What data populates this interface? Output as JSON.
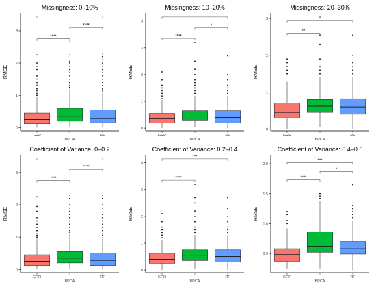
{
  "colors": {
    "GRR": "#F8766D",
    "BPCA": "#00BA38",
    "RF": "#619CFF",
    "axis": "#000000",
    "bracket": "#555555",
    "outlier": "#000000",
    "median": "#222222"
  },
  "chart_data": [
    {
      "type": "boxplot",
      "title": "Missingness: 0–10%",
      "ylabel": "RMSE",
      "xlabel": "",
      "categories": [
        "GRR",
        "BPCA",
        "RF"
      ],
      "yticks": [
        0,
        1,
        2,
        3
      ],
      "ylim": [
        -0.1,
        3.55
      ],
      "boxes": [
        {
          "name": "GRR",
          "whisker_low": 0.0,
          "q1": 0.12,
          "median": 0.25,
          "q3": 0.45,
          "whisker_high": 0.95,
          "outliers": [
            1.0,
            1.05,
            1.1,
            1.15,
            1.2,
            1.3,
            1.35,
            1.4,
            1.5,
            1.6,
            1.8,
            1.9,
            2.0,
            2.25
          ]
        },
        {
          "name": "BPCA",
          "whisker_low": 0.0,
          "q1": 0.2,
          "median": 0.35,
          "q3": 0.6,
          "whisker_high": 1.2,
          "outliers": [
            1.25,
            1.3,
            1.35,
            1.4,
            1.5,
            1.6,
            1.7,
            1.8,
            1.9,
            2.0,
            2.05,
            2.25,
            2.65
          ]
        },
        {
          "name": "RF",
          "whisker_low": 0.0,
          "q1": 0.15,
          "median": 0.28,
          "q3": 0.55,
          "whisker_high": 1.05,
          "outliers": [
            1.1,
            1.15,
            1.2,
            1.3,
            1.4,
            1.5,
            1.6,
            1.7,
            1.8,
            1.9,
            2.0,
            2.1,
            2.2,
            2.3
          ]
        }
      ],
      "comparisons": [
        {
          "from": "GRR",
          "to": "BPCA",
          "y": 2.75,
          "label": "****"
        },
        {
          "from": "BPCA",
          "to": "RF",
          "y": 3.1,
          "label": "****"
        },
        {
          "from": "GRR",
          "to": "RF",
          "y": 3.45,
          "label": ""
        }
      ]
    },
    {
      "type": "boxplot",
      "title": "Missingness: 10–20%",
      "ylabel": "RMSE",
      "xlabel": "",
      "categories": [
        "GRR",
        "BPCA",
        "RF"
      ],
      "yticks": [
        0,
        1,
        2,
        3,
        4
      ],
      "ylim": [
        -0.1,
        4.3
      ],
      "boxes": [
        {
          "name": "GRR",
          "whisker_low": 0.0,
          "q1": 0.2,
          "median": 0.35,
          "q3": 0.55,
          "whisker_high": 1.05,
          "outliers": [
            1.1,
            1.2,
            1.3,
            1.4,
            1.5,
            1.6,
            1.8,
            2.1
          ]
        },
        {
          "name": "BPCA",
          "whisker_low": 0.05,
          "q1": 0.3,
          "median": 0.45,
          "q3": 0.65,
          "whisker_high": 1.2,
          "outliers": [
            1.3,
            1.4,
            1.5,
            1.6,
            1.7,
            1.8,
            2.0,
            2.2,
            2.5,
            3.2
          ]
        },
        {
          "name": "RF",
          "whisker_low": 0.0,
          "q1": 0.2,
          "median": 0.4,
          "q3": 0.65,
          "whisker_high": 1.2,
          "outliers": [
            1.3,
            1.4,
            1.5,
            1.6,
            1.8,
            2.0,
            2.7
          ]
        }
      ],
      "comparisons": [
        {
          "from": "GRR",
          "to": "BPCA",
          "y": 3.35,
          "label": "****"
        },
        {
          "from": "BPCA",
          "to": "RF",
          "y": 3.75,
          "label": "*"
        },
        {
          "from": "GRR",
          "to": "RF",
          "y": 4.15,
          "label": ""
        }
      ]
    },
    {
      "type": "boxplot",
      "title": "Missingness: 20–30%",
      "ylabel": "RMSE",
      "xlabel": "",
      "categories": [
        "GRR",
        "BPCA",
        "RF"
      ],
      "yticks": [
        0,
        1,
        2,
        3
      ],
      "ylim": [
        -0.05,
        3.15
      ],
      "boxes": [
        {
          "name": "GRR",
          "whisker_low": 0.0,
          "q1": 0.3,
          "median": 0.45,
          "q3": 0.7,
          "whisker_high": 1.3,
          "outliers": [
            1.5,
            1.6,
            1.7,
            1.8,
            1.9
          ]
        },
        {
          "name": "BPCA",
          "whisker_low": 0.05,
          "q1": 0.45,
          "median": 0.62,
          "q3": 0.8,
          "whisker_high": 1.4,
          "outliers": [
            1.5,
            1.6,
            1.7,
            1.9,
            2.3,
            2.55
          ]
        },
        {
          "name": "RF",
          "whisker_low": 0.0,
          "q1": 0.4,
          "median": 0.6,
          "q3": 0.82,
          "whisker_high": 1.4,
          "outliers": [
            1.5,
            1.6,
            1.7,
            1.8,
            2.0,
            2.55
          ]
        }
      ],
      "comparisons": [
        {
          "from": "GRR",
          "to": "BPCA",
          "y": 2.6,
          "label": "**"
        },
        {
          "from": "GRR",
          "to": "RF",
          "y": 2.95,
          "label": "*"
        }
      ]
    },
    {
      "type": "boxplot",
      "title": "Coefficient of Variance: 0–0.2",
      "ylabel": "RMSE",
      "xlabel": "",
      "categories": [
        "GRR",
        "BPCA",
        "RF"
      ],
      "yticks": [
        0,
        1,
        2,
        3
      ],
      "ylim": [
        -0.1,
        3.55
      ],
      "boxes": [
        {
          "name": "GRR",
          "whisker_low": 0.0,
          "q1": 0.12,
          "median": 0.25,
          "q3": 0.45,
          "whisker_high": 0.95,
          "outliers": [
            1.0,
            1.05,
            1.1,
            1.2,
            1.3,
            1.4,
            1.5,
            1.6,
            1.8,
            1.95,
            2.25
          ]
        },
        {
          "name": "BPCA",
          "whisker_low": 0.0,
          "q1": 0.2,
          "median": 0.35,
          "q3": 0.55,
          "whisker_high": 1.1,
          "outliers": [
            1.15,
            1.2,
            1.3,
            1.4,
            1.5,
            1.6,
            1.7,
            1.8,
            1.9,
            2.0,
            2.2,
            2.3
          ]
        },
        {
          "name": "RF",
          "whisker_low": 0.0,
          "q1": 0.12,
          "median": 0.28,
          "q3": 0.5,
          "whisker_high": 1.0,
          "outliers": [
            1.05,
            1.1,
            1.2,
            1.3,
            1.4,
            1.5,
            1.6,
            1.7,
            1.9,
            2.0,
            2.2,
            2.3
          ]
        }
      ],
      "comparisons": [
        {
          "from": "GRR",
          "to": "BPCA",
          "y": 2.75,
          "label": "****"
        },
        {
          "from": "BPCA",
          "to": "RF",
          "y": 3.1,
          "label": "****"
        },
        {
          "from": "GRR",
          "to": "RF",
          "y": 3.45,
          "label": ""
        }
      ]
    },
    {
      "type": "boxplot",
      "title": "Coefficient of Variance: 0.2–0.4",
      "ylabel": "RMSE",
      "xlabel": "",
      "categories": [
        "GRR",
        "BPCA",
        "RF"
      ],
      "yticks": [
        0,
        1,
        2,
        3,
        4
      ],
      "ylim": [
        -0.1,
        4.3
      ],
      "boxes": [
        {
          "name": "GRR",
          "whisker_low": 0.0,
          "q1": 0.25,
          "median": 0.4,
          "q3": 0.62,
          "whisker_high": 1.1,
          "outliers": [
            1.2,
            1.3,
            1.4,
            1.5,
            1.6,
            1.8,
            2.1
          ]
        },
        {
          "name": "BPCA",
          "whisker_low": 0.05,
          "q1": 0.35,
          "median": 0.55,
          "q3": 0.75,
          "whisker_high": 1.3,
          "outliers": [
            1.4,
            1.5,
            1.6,
            1.8,
            2.0,
            2.2,
            2.5,
            2.7,
            3.2
          ]
        },
        {
          "name": "RF",
          "whisker_low": 0.0,
          "q1": 0.3,
          "median": 0.5,
          "q3": 0.75,
          "whisker_high": 1.3,
          "outliers": [
            1.4,
            1.5,
            1.6,
            1.8,
            2.0,
            2.3,
            2.7
          ]
        }
      ],
      "comparisons": [
        {
          "from": "GRR",
          "to": "BPCA",
          "y": 3.35,
          "label": "****"
        },
        {
          "from": "GRR",
          "to": "RF",
          "y": 4.15,
          "label": "***"
        }
      ]
    },
    {
      "type": "boxplot",
      "title": "Coefficient of Variance: 0.4–0.6",
      "ylabel": "RMSE",
      "xlabel": "",
      "categories": [
        "GRR",
        "BPCA",
        "RF"
      ],
      "xaxis_labels": [
        "GRR",
        "BPCA",
        "RF"
      ],
      "yticks": [
        0.5,
        1.0,
        1.5,
        2.0
      ],
      "ytick_labels": [
        "0.5",
        "1.0",
        "1.5",
        "2.0"
      ],
      "ylim": [
        0.18,
        2.15
      ],
      "boxes": [
        {
          "name": "GRR",
          "whisker_low": 0.25,
          "q1": 0.37,
          "median": 0.48,
          "q3": 0.58,
          "whisker_high": 0.92,
          "outliers": [
            1.0,
            1.05,
            1.15,
            1.2
          ]
        },
        {
          "name": "BPCA",
          "whisker_low": 0.25,
          "q1": 0.52,
          "median": 0.62,
          "q3": 0.86,
          "whisker_high": 1.38,
          "outliers": [
            1.42,
            1.46,
            1.5
          ]
        },
        {
          "name": "RF",
          "whisker_low": 0.22,
          "q1": 0.49,
          "median": 0.58,
          "q3": 0.7,
          "whisker_high": 1.05,
          "outliers": [
            1.1,
            1.15,
            1.2,
            1.25,
            1.3,
            1.65
          ]
        }
      ],
      "comparisons": [
        {
          "from": "GRR",
          "to": "BPCA",
          "y": 1.73,
          "label": "****"
        },
        {
          "from": "BPCA",
          "to": "RF",
          "y": 1.87,
          "label": "*"
        },
        {
          "from": "GRR",
          "to": "RF",
          "y": 2.02,
          "label": "***"
        }
      ]
    }
  ]
}
